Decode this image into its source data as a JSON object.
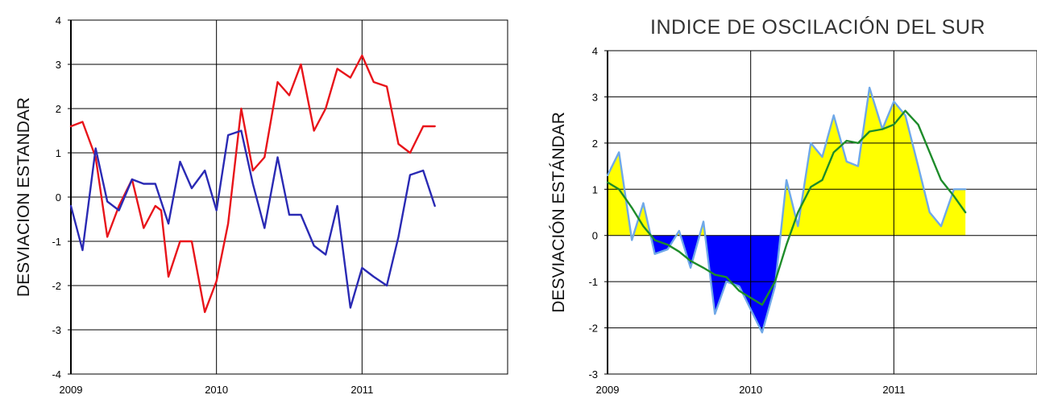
{
  "chart_data": [
    {
      "type": "line",
      "title": "",
      "ylabel": "DESVIACION ESTANDAR",
      "xlabel": "",
      "x_ticks": [
        "2009",
        "2010",
        "2011"
      ],
      "y_ticks": [
        "4",
        "3",
        "2",
        "1",
        "0",
        "-1",
        "-2",
        "-3",
        "-4"
      ],
      "ylim": [
        -4,
        4
      ],
      "xlim": [
        2009,
        2012
      ],
      "grid": true,
      "series": [
        {
          "color": "#e8141a",
          "x": [
            2009.0,
            2009.08,
            2009.17,
            2009.25,
            2009.33,
            2009.42,
            2009.5,
            2009.58,
            2009.62,
            2009.67,
            2009.75,
            2009.83,
            2009.92,
            2010.0,
            2010.08,
            2010.17,
            2010.25,
            2010.33,
            2010.42,
            2010.5,
            2010.58,
            2010.67,
            2010.75,
            2010.83,
            2010.92,
            2011.0,
            2011.08,
            2011.17,
            2011.25,
            2011.33,
            2011.42,
            2011.5
          ],
          "values": [
            1.6,
            1.7,
            0.9,
            -0.9,
            -0.2,
            0.4,
            -0.7,
            -0.2,
            -0.3,
            -1.8,
            -1.0,
            -1.0,
            -2.6,
            -1.9,
            -0.6,
            2.0,
            0.6,
            0.9,
            2.6,
            2.3,
            3.0,
            1.5,
            2.0,
            2.9,
            2.7,
            3.2,
            2.6,
            2.5,
            1.2,
            1.0,
            1.6,
            1.6
          ]
        },
        {
          "color": "#2a2ab4",
          "x": [
            2009.0,
            2009.08,
            2009.17,
            2009.25,
            2009.33,
            2009.42,
            2009.5,
            2009.58,
            2009.67,
            2009.75,
            2009.83,
            2009.92,
            2010.0,
            2010.08,
            2010.17,
            2010.25,
            2010.33,
            2010.42,
            2010.5,
            2010.58,
            2010.67,
            2010.75,
            2010.83,
            2010.92,
            2011.0,
            2011.08,
            2011.17,
            2011.25,
            2011.33,
            2011.42,
            2011.5
          ],
          "values": [
            -0.2,
            -1.2,
            1.1,
            -0.1,
            -0.3,
            0.4,
            0.3,
            0.3,
            -0.6,
            0.8,
            0.2,
            0.6,
            -0.3,
            1.4,
            1.5,
            0.3,
            -0.7,
            0.9,
            -0.4,
            -0.4,
            -1.1,
            -1.3,
            -0.2,
            -2.5,
            -1.6,
            -1.8,
            -2.0,
            -0.9,
            0.5,
            0.6,
            -0.2
          ]
        }
      ]
    },
    {
      "type": "area",
      "title": "INDICE DE OSCILACIÓN DEL SUR",
      "ylabel": "DESVIACIÓN ESTÁNDAR",
      "xlabel": "",
      "x_ticks": [
        "2009",
        "2010",
        "2011"
      ],
      "y_ticks": [
        "4",
        "3",
        "2",
        "1",
        "0",
        "-1",
        "-2",
        "-3"
      ],
      "ylim": [
        -3,
        4
      ],
      "xlim": [
        2009,
        2012
      ],
      "grid": true,
      "fill_positive_color": "#ffff00",
      "fill_negative_color": "#0000ff",
      "series": [
        {
          "color": "#6fa8e8",
          "x": [
            2009.0,
            2009.08,
            2009.17,
            2009.25,
            2009.33,
            2009.42,
            2009.5,
            2009.58,
            2009.67,
            2009.75,
            2009.83,
            2009.92,
            2010.0,
            2010.08,
            2010.17,
            2010.25,
            2010.33,
            2010.42,
            2010.5,
            2010.58,
            2010.67,
            2010.75,
            2010.83,
            2010.92,
            2011.0,
            2011.08,
            2011.17,
            2011.25,
            2011.33,
            2011.42,
            2011.5
          ],
          "values": [
            1.3,
            1.8,
            -0.1,
            0.7,
            -0.4,
            -0.3,
            0.1,
            -0.7,
            0.3,
            -1.7,
            -1.0,
            -1.1,
            -1.6,
            -2.1,
            -1.1,
            1.2,
            0.2,
            2.0,
            1.7,
            2.6,
            1.6,
            1.5,
            3.2,
            2.3,
            2.9,
            2.6,
            1.5,
            0.5,
            0.2,
            1.0,
            1.0
          ]
        },
        {
          "color": "#1e8c2a",
          "x": [
            2009.0,
            2009.08,
            2009.17,
            2009.25,
            2009.33,
            2009.42,
            2009.5,
            2009.58,
            2009.67,
            2009.75,
            2009.83,
            2009.92,
            2010.0,
            2010.08,
            2010.17,
            2010.25,
            2010.33,
            2010.42,
            2010.5,
            2010.58,
            2010.67,
            2010.75,
            2010.83,
            2010.92,
            2011.0,
            2011.08,
            2011.17,
            2011.25,
            2011.33,
            2011.42,
            2011.5
          ],
          "values": [
            1.15,
            1.0,
            0.6,
            0.2,
            -0.1,
            -0.2,
            -0.35,
            -0.55,
            -0.7,
            -0.85,
            -0.9,
            -1.2,
            -1.35,
            -1.5,
            -1.0,
            -0.2,
            0.5,
            1.05,
            1.2,
            1.8,
            2.05,
            2.0,
            2.25,
            2.3,
            2.4,
            2.7,
            2.4,
            1.8,
            1.2,
            0.85,
            0.5
          ]
        }
      ]
    }
  ]
}
